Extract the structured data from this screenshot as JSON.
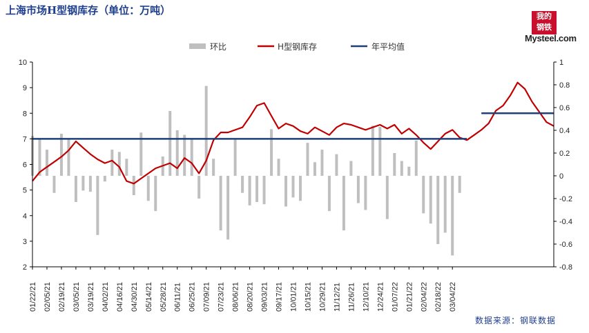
{
  "header": {
    "title": "上海市场H型钢库存（单位：万吨）"
  },
  "logo": {
    "seal_text": "我的钢铁",
    "brand": "Mysteel.com"
  },
  "footer": {
    "source": "数据来源：钢联数据"
  },
  "colors": {
    "bar": "#bfbfbf",
    "line": "#c00000",
    "avg": "#1f3f7a"
  },
  "chart_data": {
    "type": "bar+line",
    "legend": [
      "环比",
      "H型钢库存",
      "年平均值"
    ],
    "legend_position": "top-center",
    "grid": false,
    "y_left": {
      "min": 2,
      "max": 10,
      "ticks": [
        "2",
        "3",
        "4",
        "5",
        "6",
        "7",
        "8",
        "9",
        "10"
      ]
    },
    "y_right": {
      "min": -0.8,
      "max": 1,
      "ticks": [
        "-0.8",
        "-0.6",
        "-0.4",
        "-0.2",
        "0",
        "0.2",
        "0.4",
        "0.6",
        "0.8",
        "1"
      ]
    },
    "x_tick_labels": [
      "01/22/21",
      "02/05/21",
      "02/19/21",
      "03/05/21",
      "03/19/21",
      "04/02/21",
      "04/16/21",
      "04/30/21",
      "05/14/21",
      "05/28/21",
      "06/11/21",
      "06/25/21",
      "07/09/21",
      "07/23/21",
      "08/06/21",
      "08/20/21",
      "09/03/21",
      "09/17/21",
      "10/01/21",
      "10/15/21",
      "10/29/21",
      "11/12/21",
      "11/26/21",
      "12/10/21",
      "12/24/21",
      "01/07/22",
      "01/21/22",
      "02/04/22",
      "02/18/22",
      "03/04/22"
    ],
    "series": [
      {
        "name": "H型钢库存",
        "axis": "left",
        "type": "line",
        "values": [
          5.35,
          5.7,
          5.9,
          6.1,
          6.3,
          6.55,
          6.9,
          6.65,
          6.4,
          6.2,
          6.05,
          6.15,
          5.9,
          5.35,
          5.25,
          5.45,
          5.65,
          5.85,
          5.95,
          6.05,
          5.85,
          6.25,
          6.05,
          5.65,
          6.15,
          6.95,
          7.25,
          7.25,
          7.35,
          7.45,
          7.85,
          8.3,
          8.4,
          7.9,
          7.4,
          7.6,
          7.5,
          7.3,
          7.2,
          7.45,
          7.3,
          7.15,
          7.45,
          7.6,
          7.55,
          7.45,
          7.35,
          7.45,
          7.55,
          7.4,
          7.55,
          7.2,
          7.4,
          7.15,
          6.85,
          6.6,
          6.9,
          7.2,
          7.35,
          7.05,
          6.95,
          7.15,
          7.35,
          7.6,
          8.1,
          8.3,
          8.7,
          9.2,
          8.95,
          8.45,
          8.05,
          7.65,
          7.5
        ]
      },
      {
        "name": "环比",
        "axis": "right",
        "type": "bar",
        "values": [
          0.35,
          0.33,
          0.23,
          -0.15,
          0.37,
          0.33,
          -0.23,
          -0.13,
          -0.14,
          -0.52,
          -0.05,
          0.23,
          0.21,
          0.15,
          -0.17,
          0.38,
          -0.22,
          -0.31,
          0.17,
          0.57,
          0.4,
          0.36,
          0.32,
          -0.2,
          0.79,
          0.15,
          -0.48,
          -0.56,
          0.32,
          -0.15,
          -0.26,
          -0.23,
          -0.25,
          0.41,
          0.15,
          -0.27,
          -0.19,
          -0.22,
          0.29,
          0.12,
          0.23,
          -0.31,
          0.19,
          -0.48,
          0.13,
          -0.24,
          -0.3,
          0.44,
          0.43,
          -0.38,
          0.2,
          0.13,
          0.08,
          0.31,
          -0.33,
          -0.42,
          -0.6,
          -0.5,
          -0.7,
          -0.15
        ]
      },
      {
        "name": "年平均值",
        "axis": "left",
        "type": "line",
        "segments": [
          {
            "from_index": 0,
            "to_index": 60,
            "value": 7.0
          },
          {
            "from_index": 62,
            "to_index": 72,
            "value": 8.0
          }
        ]
      }
    ]
  }
}
